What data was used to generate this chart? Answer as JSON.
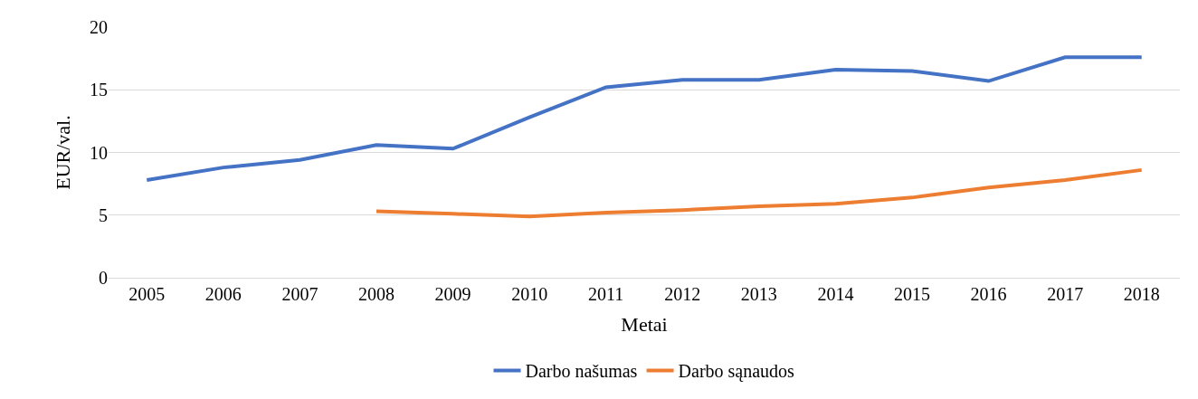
{
  "chart_data": {
    "type": "line",
    "xlabel": "Metai",
    "ylabel": "EUR/val.",
    "categories": [
      "2005",
      "2006",
      "2007",
      "2008",
      "2009",
      "2010",
      "2011",
      "2012",
      "2013",
      "2014",
      "2015",
      "2016",
      "2017",
      "2018"
    ],
    "series": [
      {
        "name": "Darbo našumas",
        "color": "#4472c4",
        "values": [
          7.8,
          8.8,
          9.4,
          10.6,
          10.3,
          12.8,
          15.2,
          15.8,
          15.8,
          16.6,
          16.5,
          15.7,
          17.6,
          17.6
        ]
      },
      {
        "name": "Darbo sąnaudos",
        "color": "#ed7d31",
        "values": [
          null,
          null,
          null,
          5.3,
          5.1,
          4.9,
          5.2,
          5.4,
          5.7,
          5.9,
          6.4,
          7.2,
          7.8,
          8.6
        ]
      }
    ],
    "ylim": [
      0,
      20
    ],
    "yticks": [
      0,
      5,
      10,
      15,
      20
    ],
    "grid": "y",
    "legend": "bottom",
    "marker": "none",
    "line_style": "solid"
  }
}
